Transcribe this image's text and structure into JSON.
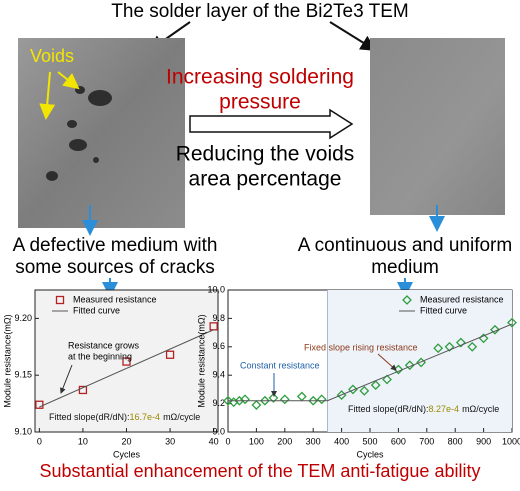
{
  "header": {
    "title": "The solder layer of the Bi2Te3 TEM"
  },
  "left_image": {
    "label": "Voids"
  },
  "middle": {
    "line1": "Increasing soldering",
    "line2": "pressure",
    "line3": "Reducing the voids",
    "line4": "area percentage"
  },
  "left_caption": {
    "line1": "A defective medium with",
    "line2": "some sources of cracks"
  },
  "right_caption": {
    "line1": "A continuous and uniform",
    "line2": "medium"
  },
  "footer": {
    "text": "Substantial enhancement of the TEM anti-fatigue ability"
  },
  "chart_data": [
    {
      "type": "scatter",
      "x_label": "Cycles",
      "y_label": "Module resistance(mΩ)",
      "xlim": [
        -1,
        41
      ],
      "ylim": [
        9.1,
        9.225
      ],
      "xticks": [
        0,
        10,
        20,
        30,
        40
      ],
      "yticks": [
        {
          "value": 9.1,
          "label": "9.10"
        },
        {
          "value": 9.15,
          "label": "9.15"
        },
        {
          "value": 9.2,
          "label": "9.20"
        }
      ],
      "legend": "upper left",
      "background": "#f2f2f2",
      "series": [
        {
          "name": "Measured resistance",
          "color": "#b22222",
          "marker": "square",
          "x": [
            0,
            10,
            20,
            30,
            40
          ],
          "values": [
            9.124,
            9.137,
            9.162,
            9.168,
            9.193
          ]
        },
        {
          "name": "Fitted curve",
          "color": "#555555",
          "marker": "line",
          "x": [
            0,
            40
          ],
          "values": [
            9.122,
            9.19
          ]
        }
      ],
      "annotations": {
        "note1": "Resistance grows",
        "note2": "at the beginning",
        "slope_label": "Fitted slope(dR/dN):",
        "slope_value": "16.7e-4",
        "slope_unit": "mΩ/cycle"
      }
    },
    {
      "type": "scatter",
      "x_label": "Cycles",
      "y_label": "Module resistance(mΩ)",
      "xlim": [
        0,
        1000
      ],
      "ylim": [
        9,
        10
      ],
      "xticks": [
        0,
        100,
        200,
        300,
        400,
        500,
        600,
        700,
        800,
        900,
        1000
      ],
      "yticks": [
        {
          "value": 9,
          "label": "9.0"
        },
        9.2,
        9.4,
        9.6,
        9.8,
        {
          "value": 10,
          "label": "10.0"
        }
      ],
      "legend": "upper right",
      "background": "#ffffff",
      "shaded_region": [
        350,
        1000
      ],
      "series": [
        {
          "name": "Measured resistance",
          "color": "#2e9e3e",
          "marker": "diamond",
          "x": [
            0,
            20,
            40,
            60,
            100,
            130,
            160,
            200,
            260,
            300,
            330,
            400,
            440,
            480,
            520,
            560,
            600,
            640,
            680,
            740,
            780,
            820,
            860,
            900,
            940,
            1000
          ],
          "values": [
            9.22,
            9.21,
            9.22,
            9.23,
            9.19,
            9.22,
            9.24,
            9.23,
            9.25,
            9.22,
            9.23,
            9.26,
            9.3,
            9.29,
            9.33,
            9.37,
            9.44,
            9.47,
            9.49,
            9.59,
            9.6,
            9.63,
            9.6,
            9.66,
            9.72,
            9.77
          ]
        },
        {
          "name": "Fitted curve",
          "color": "#555555",
          "marker": "line",
          "x": [
            0,
            350,
            1000
          ],
          "values": [
            9.22,
            9.22,
            9.76
          ]
        }
      ],
      "annotations": {
        "note1": "Constant resistance",
        "note2": "Fixed slope rising resistance",
        "slope_label": "Fitted slope(dR/dN):",
        "slope_value": "8.27e-4",
        "slope_unit": "mΩ/cycle"
      }
    }
  ]
}
